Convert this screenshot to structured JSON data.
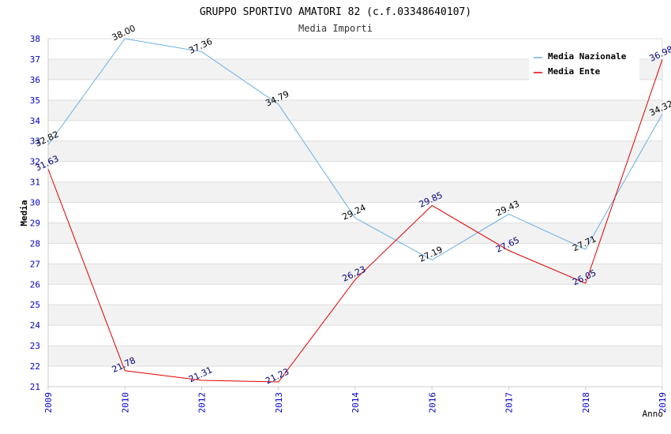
{
  "chart_data": {
    "type": "line",
    "title": "GRUPPO SPORTIVO AMATORI 82 (c.f.03348640107)",
    "subtitle": "Media Importi",
    "xlabel": "Anno",
    "ylabel": "Media",
    "ylim": [
      21,
      38
    ],
    "yticks": [
      21,
      22,
      23,
      24,
      25,
      26,
      27,
      28,
      29,
      30,
      31,
      32,
      33,
      34,
      35,
      36,
      37,
      38
    ],
    "categories": [
      "2009",
      "2010",
      "2012",
      "2013",
      "2014",
      "2016",
      "2017",
      "2018",
      "2019"
    ],
    "grid": true,
    "legend_position": "top-right",
    "series": [
      {
        "name": "Media Nazionale",
        "color": "#6aaee8",
        "label_color": "#000000",
        "values": [
          32.82,
          38.0,
          37.36,
          34.79,
          29.24,
          27.19,
          29.43,
          27.71,
          34.32
        ],
        "labels": [
          "32.82",
          "38.00",
          "37.36",
          "34.79",
          "29.24",
          "27.19",
          "29.43",
          "27.71",
          "34.32"
        ]
      },
      {
        "name": "Media Ente",
        "color": "#e00000",
        "label_color": "#000080",
        "values": [
          31.63,
          21.78,
          21.31,
          21.23,
          26.23,
          29.85,
          27.65,
          26.05,
          36.98
        ],
        "labels": [
          "31.63",
          "21.78",
          "21.31",
          "21.23",
          "26.23",
          "29.85",
          "27.65",
          "26.05",
          "36.98"
        ]
      }
    ]
  }
}
